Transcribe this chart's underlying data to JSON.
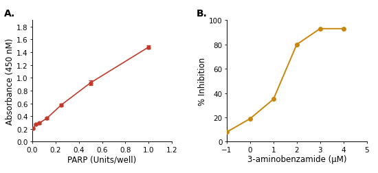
{
  "panel_A": {
    "x": [
      0.01,
      0.03,
      0.06,
      0.125,
      0.25,
      0.5,
      1.0
    ],
    "y": [
      0.21,
      0.27,
      0.29,
      0.365,
      0.575,
      0.92,
      1.48
    ],
    "yerr": [
      0.008,
      0.012,
      0.012,
      0.018,
      0.022,
      0.035,
      0.025
    ],
    "color": "#c0392b",
    "line_color": "#c0392b",
    "xlabel": "PARP (Units/well)",
    "ylabel": "Absorbance (450 nM)",
    "xlim": [
      0,
      1.2
    ],
    "ylim": [
      0,
      1.9
    ],
    "xticks": [
      0,
      0.2,
      0.4,
      0.6,
      0.8,
      1.0,
      1.2
    ],
    "yticks": [
      0,
      0.2,
      0.4,
      0.6,
      0.8,
      1.0,
      1.2,
      1.4,
      1.6,
      1.8
    ],
    "label": "A."
  },
  "panel_B": {
    "x": [
      -1,
      0,
      1,
      2,
      3,
      4
    ],
    "y": [
      8,
      19,
      35,
      80,
      93,
      93
    ],
    "color": "#c8860a",
    "line_color": "#c8860a",
    "xlabel": "3-aminobenzamide (μM)",
    "ylabel": "% Inhibition",
    "xlim": [
      -1,
      5
    ],
    "ylim": [
      0,
      100
    ],
    "xticks": [
      -1,
      0,
      1,
      2,
      3,
      4,
      5
    ],
    "yticks": [
      0,
      20,
      40,
      60,
      80,
      100
    ],
    "label": "B."
  },
  "background_color": "#ffffff",
  "label_fontsize": 10,
  "axis_label_fontsize": 8.5,
  "tick_fontsize": 7.5
}
